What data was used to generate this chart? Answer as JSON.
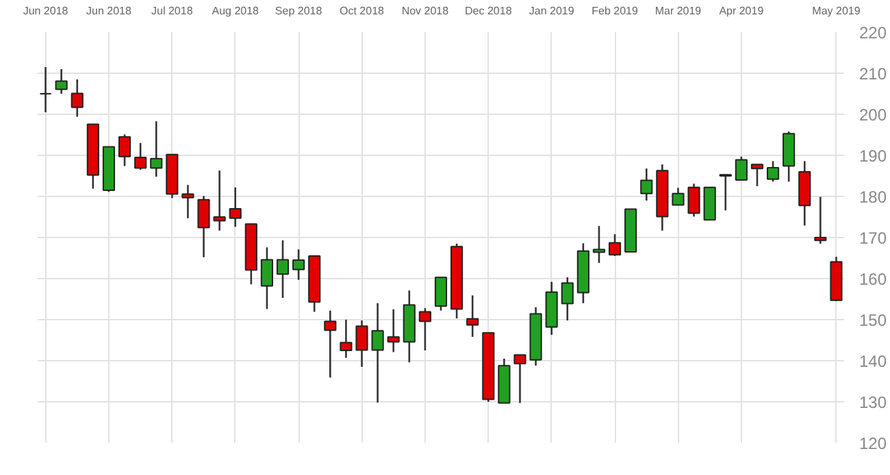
{
  "chart_data": {
    "type": "candlestick",
    "categories": [
      "Jun 2018",
      null,
      null,
      null,
      "Jun 2018",
      null,
      null,
      null,
      "Jul 2018",
      null,
      null,
      null,
      "Aug 2018",
      null,
      null,
      null,
      "Sep 2018",
      null,
      null,
      null,
      "Oct 2018",
      null,
      null,
      null,
      "Nov 2018",
      null,
      null,
      null,
      "Dec 2018",
      null,
      null,
      null,
      "Jan 2019",
      null,
      null,
      null,
      "Feb 2019",
      null,
      null,
      null,
      "Mar 2019",
      null,
      null,
      null,
      "Apr 2019",
      null,
      null,
      null,
      null,
      null,
      "May 2019"
    ],
    "ohlc": [
      [
        205,
        211.5,
        200.5,
        205
      ],
      [
        206.1,
        211,
        205,
        208.1
      ],
      [
        205.1,
        208.5,
        199.4,
        201.7
      ],
      [
        197.6,
        197.6,
        181.9,
        185.2
      ],
      [
        181.5,
        192.1,
        181.1,
        192.1
      ],
      [
        194.5,
        195.1,
        187.4,
        189.7
      ],
      [
        189.5,
        193,
        186.5,
        186.9
      ],
      [
        186.9,
        198.3,
        184.8,
        189.2
      ],
      [
        190.2,
        190.2,
        179.6,
        180.6
      ],
      [
        180.6,
        182.8,
        174.7,
        179.7
      ],
      [
        179.2,
        180.1,
        165.2,
        172.4
      ],
      [
        175,
        186.3,
        171.7,
        174.1
      ],
      [
        177,
        182.2,
        172.6,
        174.7
      ],
      [
        173.3,
        173.3,
        158.6,
        162.1
      ],
      [
        158.2,
        167.6,
        152.6,
        164.6
      ],
      [
        161.1,
        169.3,
        155.3,
        164.6
      ],
      [
        162.2,
        167.1,
        159.7,
        164.5
      ],
      [
        165.5,
        165.5,
        151.9,
        154.3
      ],
      [
        149.6,
        152.2,
        135.9,
        147.4
      ],
      [
        144.4,
        150,
        140.7,
        142.5
      ],
      [
        148.4,
        149.8,
        138.5,
        142.6
      ],
      [
        142.6,
        154,
        129.8,
        147.3
      ],
      [
        145.8,
        152.5,
        142.1,
        144.6
      ],
      [
        144.6,
        157.1,
        139.6,
        153.6
      ],
      [
        151.9,
        152.8,
        142.5,
        149.6
      ],
      [
        153.3,
        160.3,
        152.2,
        160.3
      ],
      [
        167.8,
        168.5,
        150.3,
        152.6
      ],
      [
        150.2,
        155.9,
        145.8,
        148.7
      ],
      [
        146.8,
        146.8,
        130,
        130.6
      ],
      [
        129.7,
        140.5,
        129.7,
        138.8
      ],
      [
        141.4,
        141.4,
        129.7,
        139.3
      ],
      [
        140.2,
        153,
        138.8,
        151.4
      ],
      [
        148.2,
        159.2,
        146.3,
        156.7
      ],
      [
        153.9,
        160.3,
        149.8,
        158.9
      ],
      [
        156.6,
        168.6,
        154,
        166.7
      ],
      [
        166.4,
        172.8,
        163.8,
        167.1
      ],
      [
        168.7,
        170.8,
        165.5,
        165.8
      ],
      [
        166.5,
        176.9,
        166.5,
        176.9
      ],
      [
        180.7,
        186.8,
        179,
        183.9
      ],
      [
        186.3,
        187.8,
        171.7,
        175.1
      ],
      [
        177.9,
        182.1,
        177.9,
        180.7
      ],
      [
        182.2,
        183.1,
        175.1,
        175.9
      ],
      [
        174.3,
        182.2,
        174.3,
        182.2
      ],
      [
        185,
        185.3,
        176.6,
        185.3
      ],
      [
        184,
        189.7,
        184,
        188.9
      ],
      [
        187.8,
        187.8,
        182.5,
        186.8
      ],
      [
        184.2,
        188.6,
        183.6,
        187
      ],
      [
        187.4,
        195.8,
        183.6,
        195.3
      ],
      [
        186,
        188.6,
        172.9,
        177.8
      ],
      [
        170,
        179.9,
        168.5,
        169.3
      ],
      [
        164.1,
        165.3,
        154.5,
        154.7
      ]
    ],
    "colors": [
      "#222222",
      "#22a022",
      "#e00000",
      "#e00000",
      "#22a022",
      "#e00000",
      "#e00000",
      "#22a022",
      "#e00000",
      "#e00000",
      "#e00000",
      "#e00000",
      "#e00000",
      "#e00000",
      "#22a022",
      "#22a022",
      "#22a022",
      "#e00000",
      "#e00000",
      "#e00000",
      "#e00000",
      "#22a022",
      "#e00000",
      "#22a022",
      "#e00000",
      "#22a022",
      "#e00000",
      "#e00000",
      "#e00000",
      "#22a022",
      "#e00000",
      "#22a022",
      "#22a022",
      "#22a022",
      "#22a022",
      "#22a022",
      "#e00000",
      "#22a022",
      "#22a022",
      "#e00000",
      "#22a022",
      "#e00000",
      "#22a022",
      "#222222",
      "#22a022",
      "#e00000",
      "#22a022",
      "#22a022",
      "#e00000",
      "#e00000",
      "#e00000"
    ],
    "ylim": [
      120,
      220
    ],
    "yticks": [
      120,
      130,
      140,
      150,
      160,
      170,
      180,
      190,
      200,
      210,
      220
    ],
    "grid": true
  }
}
